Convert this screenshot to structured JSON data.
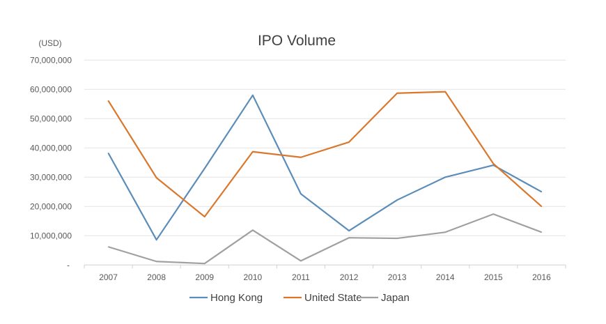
{
  "chart_data": {
    "type": "line",
    "title": "IPO Volume",
    "ylabel": "(USD)",
    "xlabel": "",
    "ylim": [
      0,
      70000000
    ],
    "yticks": [
      0,
      10000000,
      20000000,
      30000000,
      40000000,
      50000000,
      60000000,
      70000000
    ],
    "ytick_labels": [
      "-",
      "10,000,000",
      "20,000,000",
      "30,000,000",
      "40,000,000",
      "50,000,000",
      "60,000,000",
      "70,000,000"
    ],
    "categories": [
      "2007",
      "2008",
      "2009",
      "2010",
      "2011",
      "2012",
      "2013",
      "2014",
      "2015",
      "2016"
    ],
    "grid": "horizontal",
    "legend_position": "bottom",
    "series": [
      {
        "name": "Hong Kong",
        "color": "#5B8DB8",
        "values": [
          38200000,
          8600000,
          33000000,
          58000000,
          24300000,
          11700000,
          22200000,
          30000000,
          34100000,
          25000000
        ]
      },
      {
        "name": "United State",
        "color": "#D9782D",
        "values": [
          56100000,
          29800000,
          16500000,
          38700000,
          36800000,
          42000000,
          58700000,
          59200000,
          34600000,
          20000000
        ]
      },
      {
        "name": "Japan",
        "color": "#A0A0A0",
        "values": [
          6200000,
          1200000,
          500000,
          11900000,
          1400000,
          9300000,
          9100000,
          11200000,
          17400000,
          11200000
        ]
      }
    ]
  }
}
